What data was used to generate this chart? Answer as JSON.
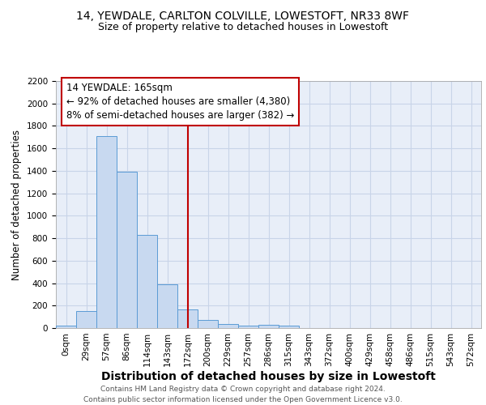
{
  "title1": "14, YEWDALE, CARLTON COLVILLE, LOWESTOFT, NR33 8WF",
  "title2": "Size of property relative to detached houses in Lowestoft",
  "xlabel": "Distribution of detached houses by size in Lowestoft",
  "ylabel": "Number of detached properties",
  "bin_labels": [
    "0sqm",
    "29sqm",
    "57sqm",
    "86sqm",
    "114sqm",
    "143sqm",
    "172sqm",
    "200sqm",
    "229sqm",
    "257sqm",
    "286sqm",
    "315sqm",
    "343sqm",
    "372sqm",
    "400sqm",
    "429sqm",
    "458sqm",
    "486sqm",
    "515sqm",
    "543sqm",
    "572sqm"
  ],
  "bar_values": [
    20,
    155,
    1710,
    1395,
    830,
    390,
    165,
    75,
    35,
    25,
    30,
    20,
    0,
    0,
    0,
    0,
    0,
    0,
    0,
    0,
    0
  ],
  "bar_color": "#c8d9f0",
  "bar_edge_color": "#5b9bd5",
  "vline_x": 6,
  "vline_color": "#c00000",
  "annotation_line1": "14 YEWDALE: 165sqm",
  "annotation_line2": "← 92% of detached houses are smaller (4,380)",
  "annotation_line3": "8% of semi-detached houses are larger (382) →",
  "annotation_box_color": "#c00000",
  "ylim": [
    0,
    2200
  ],
  "yticks": [
    0,
    200,
    400,
    600,
    800,
    1000,
    1200,
    1400,
    1600,
    1800,
    2000,
    2200
  ],
  "grid_color": "#c8d4e8",
  "background_color": "#e8eef8",
  "footer_line1": "Contains HM Land Registry data © Crown copyright and database right 2024.",
  "footer_line2": "Contains public sector information licensed under the Open Government Licence v3.0.",
  "title1_fontsize": 10,
  "title2_fontsize": 9,
  "xlabel_fontsize": 10,
  "ylabel_fontsize": 8.5,
  "tick_fontsize": 7.5,
  "annotation_fontsize": 8.5,
  "footer_fontsize": 6.5
}
